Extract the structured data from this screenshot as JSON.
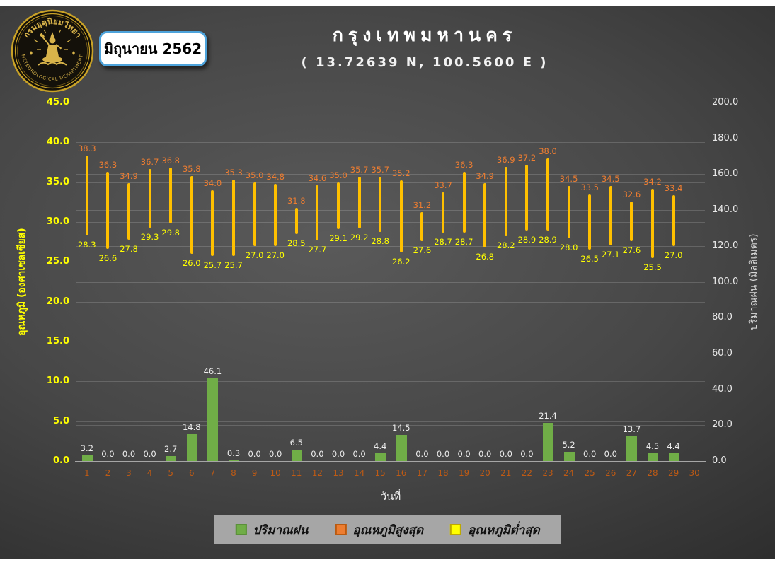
{
  "header": {
    "badge": "มิถุนายน 2562",
    "title": "กรุงเทพมหานคร",
    "subtitle": "( 13.72639 N, 100.5600 E )",
    "logo": {
      "top_text": "กรมอุตุนิยมวิทยา",
      "bottom_text": "METEOROLOGICAL DEPARTMENT"
    }
  },
  "chart_data": {
    "type": "bar",
    "title": "กรุงเทพมหานคร ( 13.72639 N, 100.5600 E )",
    "x": [
      1,
      2,
      3,
      4,
      5,
      6,
      7,
      8,
      9,
      10,
      11,
      12,
      13,
      14,
      15,
      16,
      17,
      18,
      19,
      20,
      21,
      22,
      23,
      24,
      25,
      26,
      27,
      28,
      29,
      30
    ],
    "series": [
      {
        "name": "ปริมาณฝน",
        "type": "bar",
        "axis": "right",
        "color": "#70AD47",
        "values": [
          3.2,
          0.0,
          0.0,
          0.0,
          2.7,
          14.8,
          46.1,
          0.3,
          0.0,
          0.0,
          6.5,
          0.0,
          0.0,
          0.0,
          4.4,
          14.5,
          0.0,
          0.0,
          0.0,
          0.0,
          0.0,
          0.0,
          21.4,
          5.2,
          0.0,
          0.0,
          13.7,
          4.5,
          4.4,
          null
        ]
      },
      {
        "name": "อุณหภูมิสูงสุด",
        "type": "range-high",
        "axis": "left",
        "label_color": "#ED7D31",
        "values": [
          38.3,
          36.3,
          34.9,
          36.7,
          36.8,
          35.8,
          34.0,
          35.3,
          35.0,
          34.8,
          31.8,
          34.6,
          35.0,
          35.7,
          35.7,
          35.2,
          31.2,
          33.7,
          36.3,
          34.9,
          36.9,
          37.2,
          38.0,
          34.5,
          33.5,
          34.5,
          32.6,
          34.2,
          33.4,
          null
        ]
      },
      {
        "name": "อุณหภูมิต่ำสุด",
        "type": "range-low",
        "axis": "left",
        "label_color": "#FFFF00",
        "values": [
          28.3,
          26.6,
          27.8,
          29.3,
          29.8,
          26.0,
          25.7,
          25.7,
          27.0,
          27.0,
          28.5,
          27.7,
          29.1,
          29.2,
          28.8,
          26.2,
          27.6,
          28.7,
          28.7,
          26.8,
          28.2,
          28.9,
          28.9,
          28.0,
          26.5,
          27.1,
          27.6,
          25.5,
          27.0,
          null
        ]
      }
    ],
    "range_bar_color": "#FFC000",
    "left_axis": {
      "label": "อุณหภูมิ (องศาเซลเซียส)",
      "min": 0,
      "max": 45,
      "step": 5,
      "tick_color": "#FFFF00"
    },
    "right_axis": {
      "label": "ปริมาณฝน (มิลลิเมตร)",
      "min": 0,
      "max": 200,
      "step": 20,
      "tick_color": "#FFFFFF"
    },
    "x_axis": {
      "label": "วันที่",
      "tick_color": "#BE5A14"
    },
    "grid": true,
    "legend_position": "bottom"
  },
  "legend": {
    "items": [
      {
        "label": "ปริมาณฝน",
        "color": "#70AD47",
        "border": "#5A8F39"
      },
      {
        "label": "อุณหภูมิสูงสุด",
        "color": "#ED7D31",
        "border": "#B95A10"
      },
      {
        "label": "อุณหภูมิต่ำสุด",
        "color": "#FFFF00",
        "border": "#BDA800"
      }
    ]
  }
}
